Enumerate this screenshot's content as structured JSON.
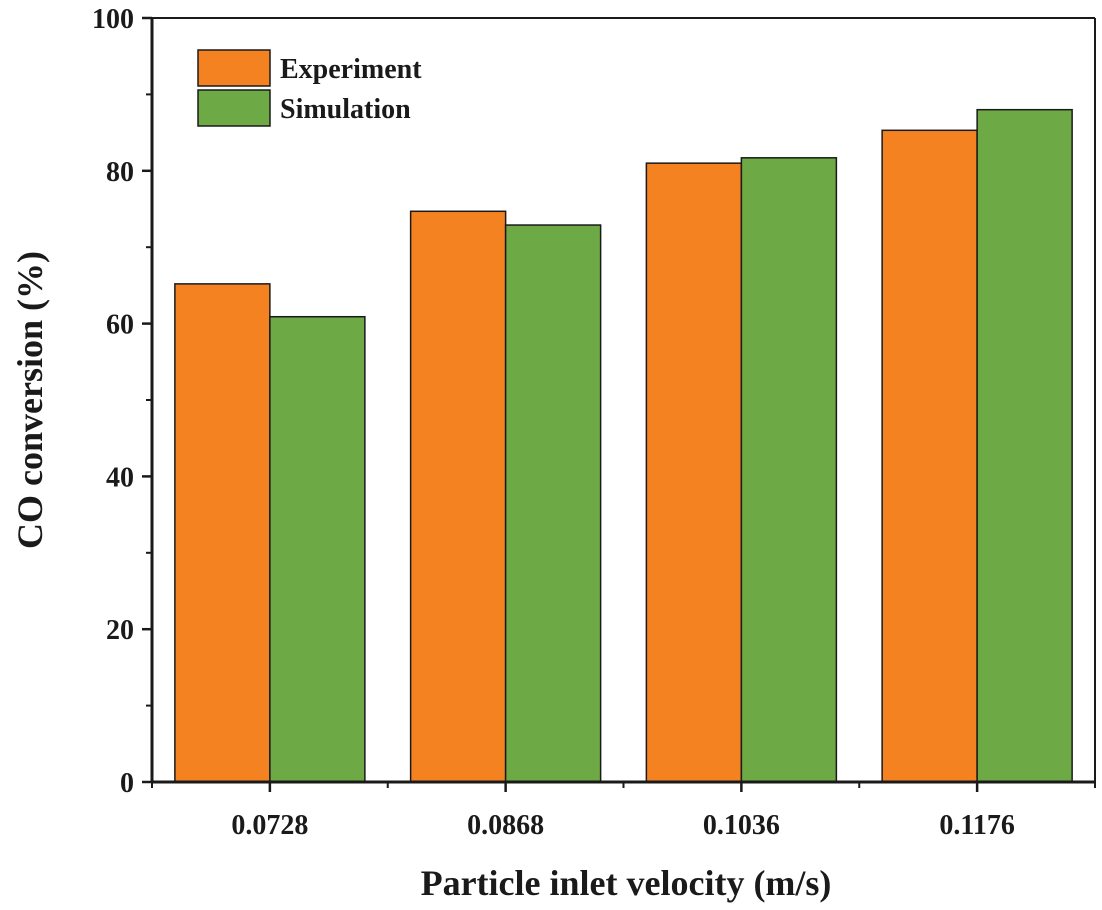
{
  "chart_data": {
    "type": "bar",
    "title": "",
    "xlabel": "Particle inlet velocity (m/s)",
    "ylabel": "CO conversion (%)",
    "categories": [
      "0.0728",
      "0.0868",
      "0.1036",
      "0.1176"
    ],
    "series": [
      {
        "name": "Experiment",
        "color": "#F58220",
        "values": [
          65.2,
          74.7,
          81.0,
          85.3
        ]
      },
      {
        "name": "Simulation",
        "color": "#6DA944",
        "values": [
          60.9,
          72.9,
          81.7,
          88.0
        ]
      }
    ],
    "ylim": [
      0,
      100
    ],
    "yticks": [
      "0",
      "20",
      "40",
      "60",
      "80",
      "100"
    ],
    "grid": false,
    "legend_position": "top-left"
  }
}
